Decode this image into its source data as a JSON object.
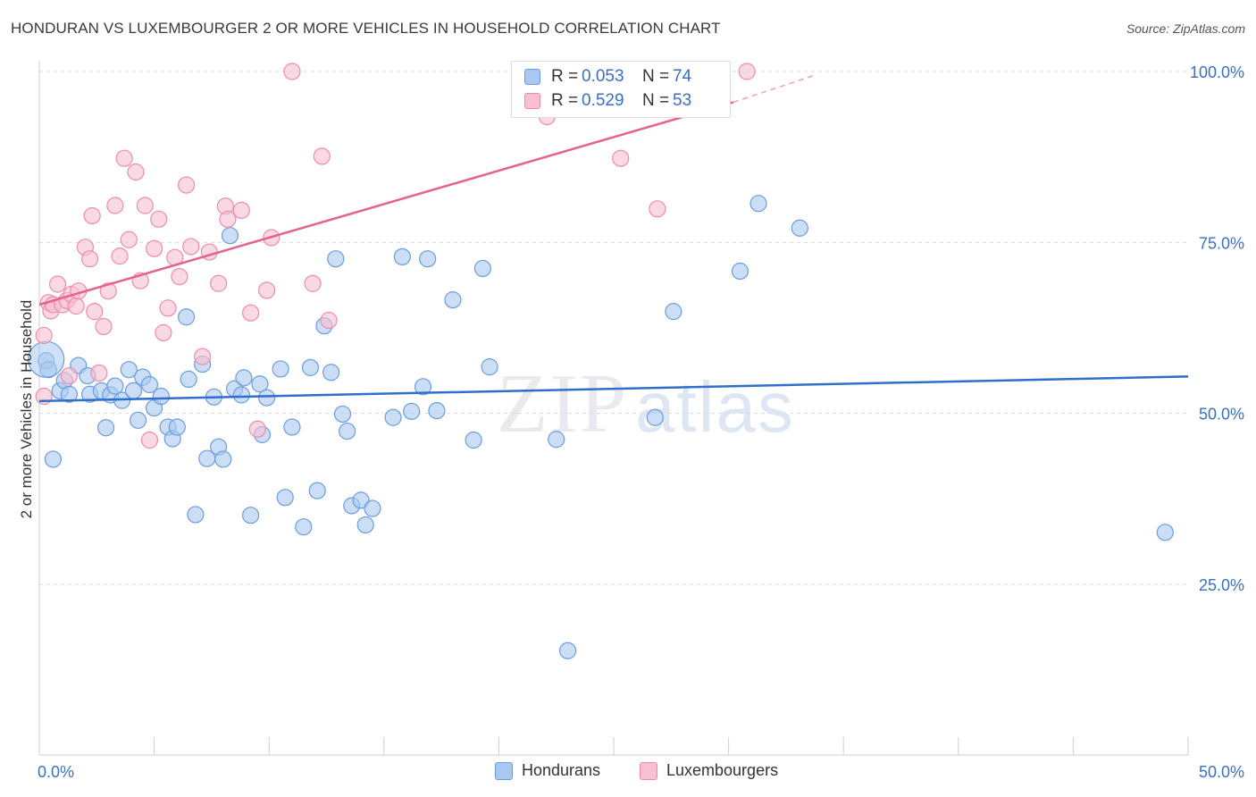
{
  "title": "HONDURAN VS LUXEMBOURGER 2 OR MORE VEHICLES IN HOUSEHOLD CORRELATION CHART",
  "source": "Source: ZipAtlas.com",
  "watermark": {
    "zip": "ZIP",
    "atlas": "atlas"
  },
  "legend": {
    "rows": [
      {
        "r_label": "R =",
        "r_value": "0.053",
        "n_label": "N =",
        "n_value": "74",
        "color": "#a9c8f0",
        "border": "#6a9de0"
      },
      {
        "r_label": "R =",
        "r_value": "0.529",
        "n_label": "N =",
        "n_value": "53",
        "color": "#f8bfd2",
        "border": "#ee8bab"
      }
    ]
  },
  "bottom_legend": [
    {
      "label": "Hondurans",
      "color": "#a9c8f0",
      "border": "#6a9de0"
    },
    {
      "label": "Luxembourgers",
      "color": "#f8bfd2",
      "border": "#ee8bab"
    }
  ],
  "chart_data": {
    "type": "scatter",
    "title": "HONDURAN VS LUXEMBOURGER 2 OR MORE VEHICLES IN HOUSEHOLD CORRELATION CHART",
    "ylabel": "2 or more Vehicles in Household",
    "xlabel": "",
    "xlim": [
      0,
      50
    ],
    "ylim": [
      0,
      105
    ],
    "x_tick_labels": [
      "0.0%",
      "50.0%"
    ],
    "y_ticks": [
      25,
      50,
      75,
      100
    ],
    "y_tick_labels": [
      "25.0%",
      "50.0%",
      "75.0%",
      "100.0%"
    ],
    "grid": true,
    "series": [
      {
        "name": "Hondurans",
        "color": "#6a9de0",
        "fill": "#a9c8f0",
        "trend": {
          "x": [
            0,
            50
          ],
          "y": [
            51.8,
            55.4
          ],
          "color": "#2f6fcc",
          "dashed_extension": false
        },
        "points": [
          [
            0.3,
            57.7
          ],
          [
            0.4,
            56.4
          ],
          [
            0.6,
            43.3
          ],
          [
            0.9,
            53.3
          ],
          [
            1.1,
            54.8
          ],
          [
            1.3,
            52.8
          ],
          [
            1.7,
            57.0
          ],
          [
            2.1,
            55.5
          ],
          [
            2.2,
            52.8
          ],
          [
            2.7,
            53.3
          ],
          [
            2.9,
            47.9
          ],
          [
            3.1,
            52.7
          ],
          [
            3.3,
            54.0
          ],
          [
            3.6,
            51.9
          ],
          [
            3.9,
            56.4
          ],
          [
            4.1,
            53.3
          ],
          [
            4.3,
            49.0
          ],
          [
            4.5,
            55.3
          ],
          [
            4.8,
            54.2
          ],
          [
            5.0,
            50.8
          ],
          [
            5.3,
            52.5
          ],
          [
            5.6,
            48.0
          ],
          [
            5.8,
            46.3
          ],
          [
            6.0,
            48.0
          ],
          [
            6.4,
            64.1
          ],
          [
            6.5,
            55.0
          ],
          [
            6.8,
            35.2
          ],
          [
            7.1,
            57.2
          ],
          [
            7.3,
            43.4
          ],
          [
            7.6,
            52.4
          ],
          [
            7.8,
            45.1
          ],
          [
            8.0,
            43.3
          ],
          [
            8.3,
            76.0
          ],
          [
            8.5,
            53.6
          ],
          [
            8.8,
            52.7
          ],
          [
            8.9,
            55.2
          ],
          [
            9.2,
            35.1
          ],
          [
            9.6,
            54.3
          ],
          [
            9.7,
            46.9
          ],
          [
            9.9,
            52.3
          ],
          [
            10.5,
            56.5
          ],
          [
            10.7,
            37.7
          ],
          [
            11.0,
            48.0
          ],
          [
            11.5,
            33.4
          ],
          [
            11.8,
            56.7
          ],
          [
            12.1,
            38.7
          ],
          [
            12.4,
            62.8
          ],
          [
            12.7,
            56.0
          ],
          [
            12.9,
            72.6
          ],
          [
            13.2,
            49.9
          ],
          [
            13.4,
            47.4
          ],
          [
            13.6,
            36.5
          ],
          [
            14.0,
            37.3
          ],
          [
            14.2,
            33.7
          ],
          [
            14.5,
            36.1
          ],
          [
            15.4,
            49.4
          ],
          [
            15.8,
            72.9
          ],
          [
            16.2,
            50.3
          ],
          [
            16.7,
            53.9
          ],
          [
            16.9,
            72.6
          ],
          [
            17.3,
            50.4
          ],
          [
            18.0,
            66.6
          ],
          [
            18.9,
            46.1
          ],
          [
            19.3,
            71.2
          ],
          [
            19.6,
            56.8
          ],
          [
            22.5,
            46.2
          ],
          [
            23.0,
            15.3
          ],
          [
            26.8,
            49.4
          ],
          [
            27.6,
            64.9
          ],
          [
            30.5,
            70.8
          ],
          [
            31.3,
            80.7
          ],
          [
            33.1,
            77.1
          ],
          [
            49.0,
            32.6
          ]
        ],
        "large_point": [
          0.3,
          57.9
        ]
      },
      {
        "name": "Luxembourgers",
        "color": "#ee8bab",
        "fill": "#f8bfd2",
        "trend": {
          "x": [
            0,
            30.2
          ],
          "y": [
            65.9,
            95.5
          ],
          "x_dashed_end": 33.8,
          "y_dashed_end": 99.5,
          "color": "#e5628f"
        },
        "points": [
          [
            0.2,
            52.5
          ],
          [
            0.2,
            61.4
          ],
          [
            0.4,
            66.2
          ],
          [
            0.5,
            65.0
          ],
          [
            0.6,
            65.9
          ],
          [
            0.8,
            68.9
          ],
          [
            1.0,
            65.9
          ],
          [
            1.2,
            66.5
          ],
          [
            1.3,
            55.5
          ],
          [
            1.4,
            67.4
          ],
          [
            1.6,
            65.7
          ],
          [
            1.7,
            67.9
          ],
          [
            2.0,
            74.3
          ],
          [
            2.2,
            72.6
          ],
          [
            2.3,
            78.9
          ],
          [
            2.4,
            64.9
          ],
          [
            2.6,
            55.9
          ],
          [
            2.8,
            62.7
          ],
          [
            3.0,
            67.9
          ],
          [
            3.3,
            80.4
          ],
          [
            3.5,
            73.0
          ],
          [
            3.7,
            87.3
          ],
          [
            3.9,
            75.4
          ],
          [
            4.2,
            85.3
          ],
          [
            4.4,
            69.4
          ],
          [
            4.6,
            80.4
          ],
          [
            4.8,
            46.1
          ],
          [
            5.0,
            74.1
          ],
          [
            5.2,
            78.4
          ],
          [
            5.4,
            61.8
          ],
          [
            5.6,
            65.4
          ],
          [
            5.9,
            72.8
          ],
          [
            6.1,
            70.0
          ],
          [
            6.4,
            83.4
          ],
          [
            6.6,
            74.4
          ],
          [
            7.1,
            58.3
          ],
          [
            7.4,
            73.6
          ],
          [
            7.8,
            69.0
          ],
          [
            8.1,
            80.3
          ],
          [
            8.2,
            78.4
          ],
          [
            8.8,
            79.7
          ],
          [
            9.2,
            64.7
          ],
          [
            9.5,
            47.7
          ],
          [
            9.9,
            68.0
          ],
          [
            10.1,
            75.7
          ],
          [
            11.0,
            100.0
          ],
          [
            11.9,
            69.0
          ],
          [
            12.3,
            87.6
          ],
          [
            12.6,
            63.6
          ],
          [
            22.1,
            93.4
          ],
          [
            25.3,
            87.3
          ],
          [
            26.9,
            79.9
          ],
          [
            30.8,
            100.0
          ]
        ]
      }
    ]
  }
}
